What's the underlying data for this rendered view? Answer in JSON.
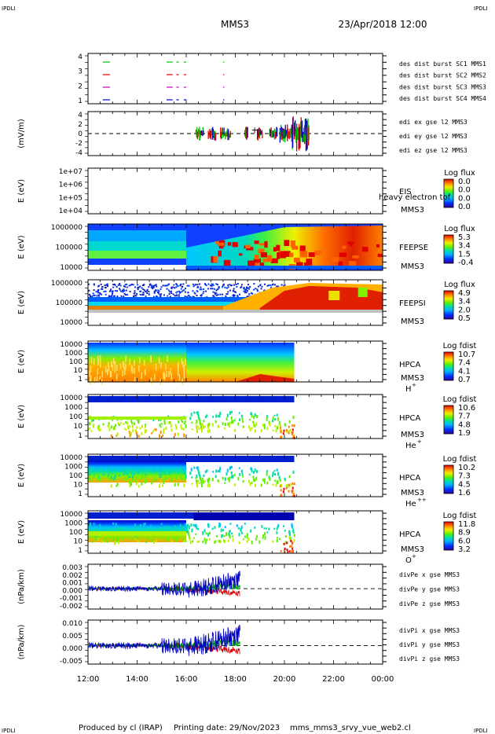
{
  "header": {
    "corner_tl": "IPDLI",
    "corner_tr": "IPDLI",
    "corner_bl": "IPDLI",
    "corner_br": "IPDLI",
    "title": "MMS3",
    "date": "23/Apr/2018 12:00"
  },
  "footer": {
    "produced_by": "Produced by cl (IRAP)",
    "printing_date": "Printing date: 29/Nov/2023",
    "filename": "mms_mms3_srvy_vue_web2.cl"
  },
  "colors": {
    "red": "#e00000",
    "green": "#00c000",
    "blue": "#0000c0",
    "magenta": "#c000c0",
    "legend_red": "#cc0000",
    "legend_green": "#00bb00",
    "legend_blue": "#0000cc",
    "legend_magenta": "#cc00cc"
  },
  "chart_data": [
    {
      "type": "line",
      "id": "burst",
      "ylabel": "",
      "yticks": [
        "4",
        "3",
        "2",
        "1"
      ],
      "ylim": [
        0.5,
        4.5
      ],
      "legend": [
        {
          "text": "des dist burst SC1 MMS1",
          "color": "blue"
        },
        {
          "text": "des dist burst SC2 MMS2",
          "color": "magenta"
        },
        {
          "text": "des dist burst SC3 MMS3",
          "color": "red"
        },
        {
          "text": "des dist burst SC4 MMS4",
          "color": "green"
        }
      ],
      "series": [
        {
          "sc": 4,
          "color": "green",
          "intervals": [
            [
              12.6,
              12.9
            ],
            [
              15.2,
              15.45
            ],
            [
              15.6,
              15.7
            ],
            [
              15.9,
              16.0
            ],
            [
              17.5,
              17.55
            ]
          ]
        },
        {
          "sc": 3,
          "color": "red",
          "intervals": [
            [
              12.6,
              12.9
            ],
            [
              15.2,
              15.45
            ],
            [
              15.6,
              15.7
            ],
            [
              15.9,
              16.0
            ],
            [
              17.5,
              17.55
            ]
          ]
        },
        {
          "sc": 2,
          "color": "magenta",
          "intervals": [
            [
              12.6,
              12.9
            ],
            [
              15.2,
              15.45
            ],
            [
              15.6,
              15.7
            ],
            [
              15.9,
              16.0
            ],
            [
              17.5,
              17.55
            ]
          ]
        },
        {
          "sc": 1,
          "color": "blue",
          "intervals": [
            [
              12.6,
              12.9
            ],
            [
              15.2,
              15.45
            ],
            [
              15.6,
              15.7
            ],
            [
              15.9,
              16.0
            ],
            [
              17.5,
              17.55
            ]
          ]
        }
      ]
    },
    {
      "type": "line",
      "id": "edi",
      "ylabel": "(mV/m)",
      "yticks": [
        "4",
        "2",
        "0",
        "-2",
        "-4"
      ],
      "ylim": [
        -4,
        4
      ],
      "zero_line": true,
      "legend": [
        {
          "text": "edi ex gse l2 MMS3",
          "color": "red"
        },
        {
          "text": "edi ey gse l2 MMS3",
          "color": "green"
        },
        {
          "text": "edi ez gse l2 MMS3",
          "color": "blue"
        }
      ]
    },
    {
      "type": "heatmap",
      "id": "eis",
      "ylabel": "E (eV)",
      "yticks": [
        "1e+07",
        "1e+06",
        "1e+05",
        "1e+04"
      ],
      "instrument": "EIS",
      "species": "MMS3",
      "overlap_label": "heavy electron tof",
      "colorbar_title": "Log flux",
      "colorbar_ticks": [
        "0.0",
        "0.0",
        "0.0",
        "0.0"
      ]
    },
    {
      "type": "heatmap",
      "id": "feepse",
      "ylabel": "E (eV)",
      "yticks": [
        "1000000",
        "100000",
        "10000"
      ],
      "instrument": "FEEPSE",
      "species": "MMS3",
      "colorbar_title": "Log flux",
      "colorbar_ticks": [
        "5.3",
        "3.4",
        "1.5",
        "-0.4"
      ]
    },
    {
      "type": "heatmap",
      "id": "feepsi",
      "ylabel": "E (eV)",
      "yticks": [
        "1000000",
        "100000",
        "10000"
      ],
      "instrument": "FEEPSI",
      "species": "MMS3",
      "colorbar_title": "Log flux",
      "colorbar_ticks": [
        "4.9",
        "3.4",
        "2.0",
        "0.5"
      ]
    },
    {
      "type": "heatmap",
      "id": "hpca_h",
      "ylabel": "E (eV)",
      "yticks": [
        "10000",
        "1000",
        "100",
        "10",
        "1"
      ],
      "instrument": "HPCA",
      "species": "MMS3",
      "ion": "H",
      "ion_sup": "+",
      "colorbar_title": "Log fdist",
      "colorbar_ticks": [
        "10.7",
        "7.4",
        "4.1",
        "0.7"
      ]
    },
    {
      "type": "heatmap",
      "id": "hpca_he1",
      "ylabel": "E (eV)",
      "yticks": [
        "10000",
        "1000",
        "100",
        "10",
        "1"
      ],
      "instrument": "HPCA",
      "species": "MMS3",
      "ion": "He",
      "ion_sup": "+",
      "colorbar_title": "Log fdist",
      "colorbar_ticks": [
        "10.6",
        "7.7",
        "4.8",
        "1.9"
      ]
    },
    {
      "type": "heatmap",
      "id": "hpca_he2",
      "ylabel": "E (eV)",
      "yticks": [
        "10000",
        "1000",
        "100",
        "10",
        "1"
      ],
      "instrument": "HPCA",
      "species": "MMS3",
      "ion": "He",
      "ion_sup": "++",
      "colorbar_title": "Log fdist",
      "colorbar_ticks": [
        "10.2",
        "7.3",
        "4.5",
        "1.6"
      ]
    },
    {
      "type": "heatmap",
      "id": "hpca_o",
      "ylabel": "E (eV)",
      "yticks": [
        "10000",
        "1000",
        "100",
        "10",
        "1"
      ],
      "instrument": "HPCA",
      "species": "MMS3",
      "ion": "O",
      "ion_sup": "+",
      "colorbar_title": "Log fdist",
      "colorbar_ticks": [
        "11.8",
        "8.9",
        "6.0",
        "3.2"
      ]
    },
    {
      "type": "line",
      "id": "divpe",
      "ylabel": "(nPa/km)",
      "yticks": [
        "0.003",
        "0.002",
        "0.001",
        "0.000",
        "-0.001",
        "-0.002"
      ],
      "ylim": [
        -0.0025,
        0.003
      ],
      "zero_line": true,
      "legend": [
        {
          "text": "divPe x gse MMS3",
          "color": "red"
        },
        {
          "text": "divPe y gse MMS3",
          "color": "green"
        },
        {
          "text": "divPe z gse MMS3",
          "color": "blue"
        }
      ]
    },
    {
      "type": "line",
      "id": "divpi",
      "ylabel": "(nPa/km)",
      "yticks": [
        "0.010",
        "0.005",
        "0.000",
        "-0.005"
      ],
      "ylim": [
        -0.008,
        0.011
      ],
      "zero_line": true,
      "legend": [
        {
          "text": "divPi x gse MMS3",
          "color": "red"
        },
        {
          "text": "divPi y gse MMS3",
          "color": "green"
        },
        {
          "text": "divPi z gse MMS3",
          "color": "blue"
        }
      ]
    }
  ],
  "xaxis": {
    "ticks": [
      "12:00",
      "14:00",
      "16:00",
      "18:00",
      "20:00",
      "22:00",
      "00:00"
    ]
  }
}
